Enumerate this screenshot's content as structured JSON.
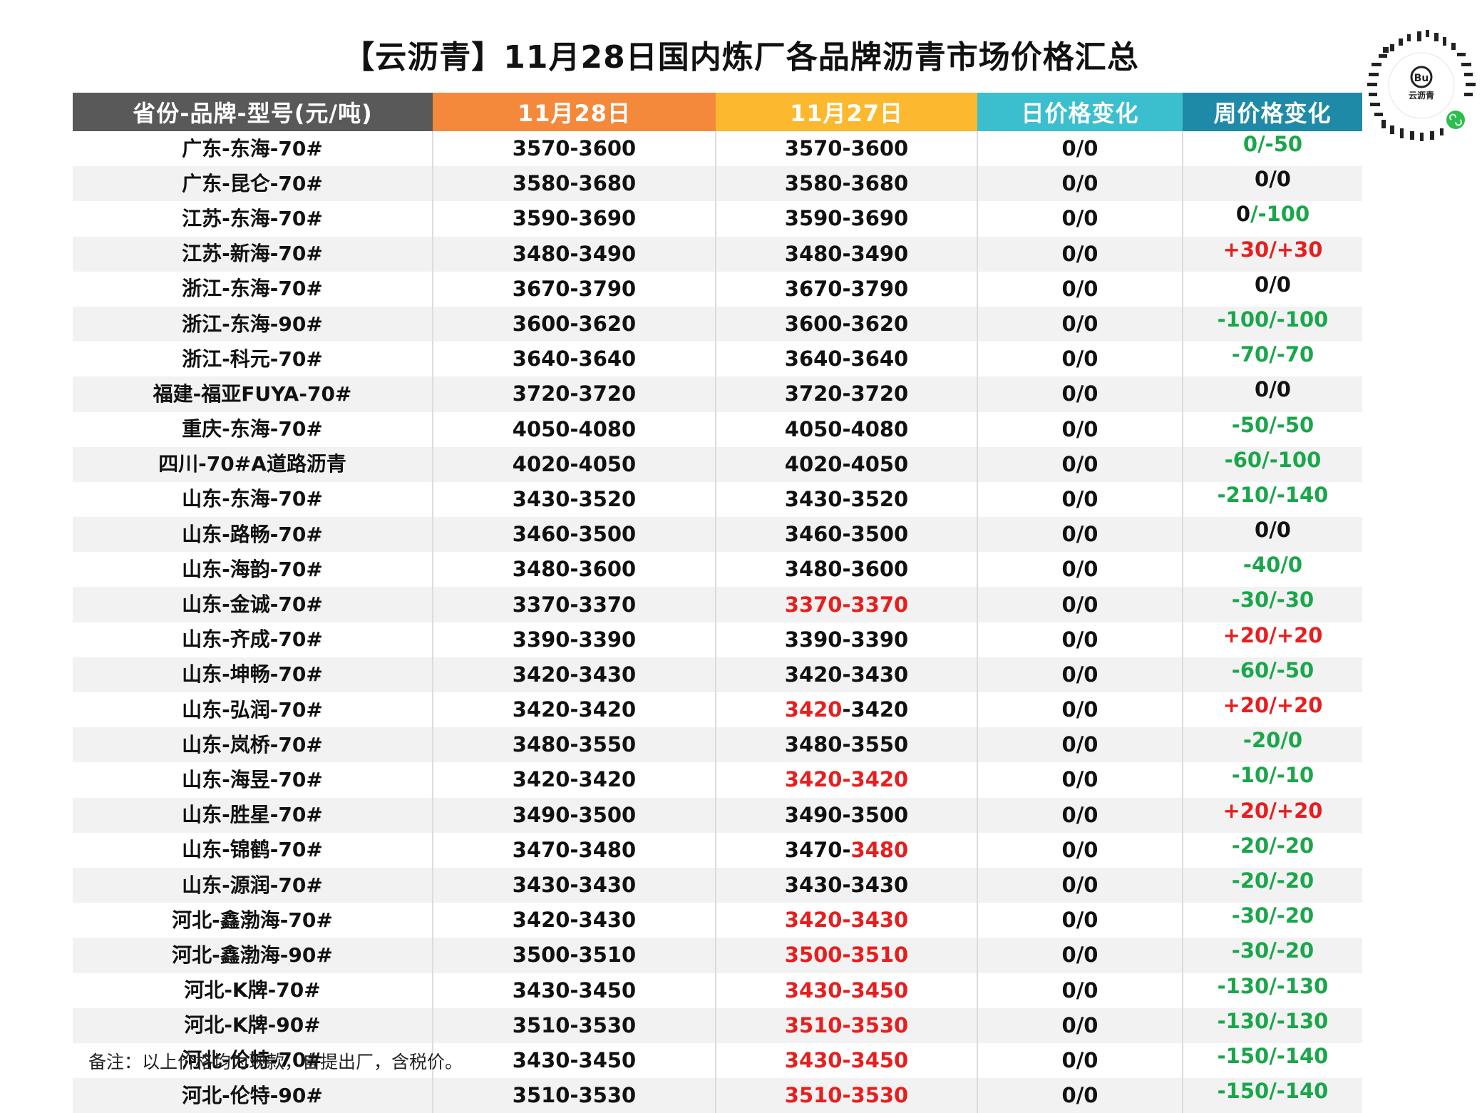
{
  "title": "【云沥青】11月28日国内炼厂各品牌沥青市场价格汇总",
  "headers": [
    "省份-品牌-型号(元/吨)",
    "11月28日",
    "11月27日",
    "日价格变化",
    "周价格变化"
  ],
  "header_colors": [
    "#595959",
    "#f4893b",
    "#fcb82f",
    "#3bbfcf",
    "#1f8aa8"
  ],
  "colors": {
    "up": "#e81e1e",
    "down": "#1aa64a",
    "flat": "#111111"
  },
  "logo": {
    "brand_text": "云沥青",
    "icon": "qr-code-logo"
  },
  "rows": [
    {
      "name": "广东-东海-70#",
      "d28": "3570-3600",
      "d27": [
        {
          "t": "3570-3600",
          "c": "black"
        }
      ],
      "day": "0/0",
      "week": [
        {
          "t": "0/-50",
          "c": "green"
        }
      ]
    },
    {
      "name": "广东-昆仑-70#",
      "d28": "3580-3680",
      "d27": [
        {
          "t": "3580-3680",
          "c": "black"
        }
      ],
      "day": "0/0",
      "week": [
        {
          "t": "0/0",
          "c": "black"
        }
      ]
    },
    {
      "name": "江苏-东海-70#",
      "d28": "3590-3690",
      "d27": [
        {
          "t": "3590-3690",
          "c": "black"
        }
      ],
      "day": "0/0",
      "week": [
        {
          "t": "0",
          "c": "black"
        },
        {
          "t": "/-100",
          "c": "green"
        }
      ]
    },
    {
      "name": "江苏-新海-70#",
      "d28": "3480-3490",
      "d27": [
        {
          "t": "3480-3490",
          "c": "black"
        }
      ],
      "day": "0/0",
      "week": [
        {
          "t": "+30/+30",
          "c": "red"
        }
      ]
    },
    {
      "name": "浙江-东海-70#",
      "d28": "3670-3790",
      "d27": [
        {
          "t": "3670-3790",
          "c": "black"
        }
      ],
      "day": "0/0",
      "week": [
        {
          "t": "0/0",
          "c": "black"
        }
      ]
    },
    {
      "name": "浙江-东海-90#",
      "d28": "3600-3620",
      "d27": [
        {
          "t": "3600-3620",
          "c": "black"
        }
      ],
      "day": "0/0",
      "week": [
        {
          "t": "-100/-100",
          "c": "green"
        }
      ]
    },
    {
      "name": "浙江-科元-70#",
      "d28": "3640-3640",
      "d27": [
        {
          "t": "3640-3640",
          "c": "black"
        }
      ],
      "day": "0/0",
      "week": [
        {
          "t": "-70/-70",
          "c": "green"
        }
      ]
    },
    {
      "name": "福建-福亚FUYA-70#",
      "d28": "3720-3720",
      "d27": [
        {
          "t": "3720-3720",
          "c": "black"
        }
      ],
      "day": "0/0",
      "week": [
        {
          "t": "0/0",
          "c": "black"
        }
      ]
    },
    {
      "name": "重庆-东海-70#",
      "d28": "4050-4080",
      "d27": [
        {
          "t": "4050-4080",
          "c": "black"
        }
      ],
      "day": "0/0",
      "week": [
        {
          "t": "-50/-50",
          "c": "green"
        }
      ]
    },
    {
      "name": "四川-70#A道路沥青",
      "d28": "4020-4050",
      "d27": [
        {
          "t": "4020-4050",
          "c": "black"
        }
      ],
      "day": "0/0",
      "week": [
        {
          "t": "-60/-100",
          "c": "green"
        }
      ]
    },
    {
      "name": "山东-东海-70#",
      "d28": "3430-3520",
      "d27": [
        {
          "t": "3430-3520",
          "c": "black"
        }
      ],
      "day": "0/0",
      "week": [
        {
          "t": "-210/-140",
          "c": "green"
        }
      ]
    },
    {
      "name": "山东-路畅-70#",
      "d28": "3460-3500",
      "d27": [
        {
          "t": "3460-3500",
          "c": "black"
        }
      ],
      "day": "0/0",
      "week": [
        {
          "t": "0/0",
          "c": "black"
        }
      ]
    },
    {
      "name": "山东-海韵-70#",
      "d28": "3480-3600",
      "d27": [
        {
          "t": "3480-3600",
          "c": "black"
        }
      ],
      "day": "0/0",
      "week": [
        {
          "t": "-40/0",
          "c": "green"
        }
      ]
    },
    {
      "name": "山东-金诚-70#",
      "d28": "3370-3370",
      "d27": [
        {
          "t": "3370-3370",
          "c": "red"
        }
      ],
      "day": "0/0",
      "week": [
        {
          "t": "-30/-30",
          "c": "green"
        }
      ]
    },
    {
      "name": "山东-齐成-70#",
      "d28": "3390-3390",
      "d27": [
        {
          "t": "3390-3390",
          "c": "black"
        }
      ],
      "day": "0/0",
      "week": [
        {
          "t": "+20/+20",
          "c": "red"
        }
      ]
    },
    {
      "name": "山东-坤畅-70#",
      "d28": "3420-3430",
      "d27": [
        {
          "t": "3420-3430",
          "c": "black"
        }
      ],
      "day": "0/0",
      "week": [
        {
          "t": "-60/-50",
          "c": "green"
        }
      ]
    },
    {
      "name": "山东-弘润-70#",
      "d28": "3420-3420",
      "d27": [
        {
          "t": "3420",
          "c": "red"
        },
        {
          "t": "-3420",
          "c": "black"
        }
      ],
      "day": "0/0",
      "week": [
        {
          "t": "+20/+20",
          "c": "red"
        }
      ]
    },
    {
      "name": "山东-岚桥-70#",
      "d28": "3480-3550",
      "d27": [
        {
          "t": "3480-3550",
          "c": "black"
        }
      ],
      "day": "0/0",
      "week": [
        {
          "t": "-20/0",
          "c": "green"
        }
      ]
    },
    {
      "name": "山东-海昱-70#",
      "d28": "3420-3420",
      "d27": [
        {
          "t": "3420-3420",
          "c": "red"
        }
      ],
      "day": "0/0",
      "week": [
        {
          "t": "-10/-10",
          "c": "green"
        }
      ]
    },
    {
      "name": "山东-胜星-70#",
      "d28": "3490-3500",
      "d27": [
        {
          "t": "3490-3500",
          "c": "black"
        }
      ],
      "day": "0/0",
      "week": [
        {
          "t": "+20/+20",
          "c": "red"
        }
      ]
    },
    {
      "name": "山东-锦鹤-70#",
      "d28": "3470-3480",
      "d27": [
        {
          "t": "3470-",
          "c": "black"
        },
        {
          "t": "3480",
          "c": "red"
        }
      ],
      "day": "0/0",
      "week": [
        {
          "t": "-20/-20",
          "c": "green"
        }
      ]
    },
    {
      "name": "山东-源润-70#",
      "d28": "3430-3430",
      "d27": [
        {
          "t": "3430-3430",
          "c": "black"
        }
      ],
      "day": "0/0",
      "week": [
        {
          "t": "-20/-20",
          "c": "green"
        }
      ]
    },
    {
      "name": "河北-鑫渤海-70#",
      "d28": "3420-3430",
      "d27": [
        {
          "t": "3420-3430",
          "c": "red"
        }
      ],
      "day": "0/0",
      "week": [
        {
          "t": "-30/-20",
          "c": "green"
        }
      ]
    },
    {
      "name": "河北-鑫渤海-90#",
      "d28": "3500-3510",
      "d27": [
        {
          "t": "3500-3510",
          "c": "red"
        }
      ],
      "day": "0/0",
      "week": [
        {
          "t": "-30/-20",
          "c": "green"
        }
      ]
    },
    {
      "name": "河北-K牌-70#",
      "d28": "3430-3450",
      "d27": [
        {
          "t": "3430-3450",
          "c": "red"
        }
      ],
      "day": "0/0",
      "week": [
        {
          "t": "-130/-130",
          "c": "green"
        }
      ]
    },
    {
      "name": "河北-K牌-90#",
      "d28": "3510-3530",
      "d27": [
        {
          "t": "3510-3530",
          "c": "red"
        }
      ],
      "day": "0/0",
      "week": [
        {
          "t": "-130/-130",
          "c": "green"
        }
      ]
    },
    {
      "name": "河北-伦特-70#",
      "d28": "3430-3450",
      "d27": [
        {
          "t": "3430-3450",
          "c": "red"
        }
      ],
      "day": "0/0",
      "week": [
        {
          "t": "-150/-140",
          "c": "green"
        }
      ]
    },
    {
      "name": "河北-伦特-90#",
      "d28": "3510-3530",
      "d27": [
        {
          "t": "3510-3530",
          "c": "red"
        }
      ],
      "day": "0/0",
      "week": [
        {
          "t": "-150/-140",
          "c": "green"
        }
      ]
    }
  ],
  "note": "备注：以上价格均为现款，自提出厂，含税价。"
}
